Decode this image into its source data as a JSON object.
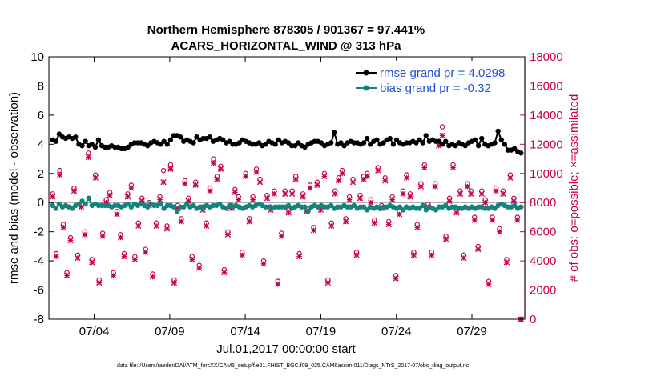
{
  "chart_data": {
    "type": "line",
    "title": "Northern Hemisphere 878305 / 901367 = 97.441%",
    "subtitle": "ACARS_HORIZONTAL_WIND @ 313 hPa",
    "xlabel": "Jul.01,2017 00:00:00 start",
    "ylabel": "rmse and bias (model - observation)",
    "y2label": "# of obs: o=possible; ×=assimilated",
    "footnote": "data file: /Users/raeder/DAI/ATM_forcXX/CAM6_setup/f.e21.FHIST_BGC.f09_025.CAM6assim.011/Diags_NTrS_2017-07/obs_diag_output.nc",
    "xlim": [
      1,
      32.5
    ],
    "ylim": [
      -8,
      10
    ],
    "y2lim": [
      0,
      18000
    ],
    "x_ticks": [
      {
        "value": 4,
        "label": "07/04"
      },
      {
        "value": 9,
        "label": "07/09"
      },
      {
        "value": 14,
        "label": "07/14"
      },
      {
        "value": 19,
        "label": "07/19"
      },
      {
        "value": 24,
        "label": "07/24"
      },
      {
        "value": 29,
        "label": "07/29"
      }
    ],
    "y_ticks": [
      -8,
      -6,
      -4,
      -2,
      0,
      2,
      4,
      6,
      8,
      10
    ],
    "y2_ticks": [
      0,
      2000,
      4000,
      6000,
      8000,
      10000,
      12000,
      14000,
      16000,
      18000
    ],
    "legend": [
      {
        "label": "rmse grand pr = 4.0298",
        "color": "#000000"
      },
      {
        "label": "bias grand pr = -0.32",
        "color": "#12847c"
      }
    ],
    "colors": {
      "rmse": "#000000",
      "bias": "#12847c",
      "obs": "#c8004c",
      "zero_line": "#b0b0b0"
    },
    "series": [
      {
        "name": "rmse",
        "axis": "left",
        "values": [
          4.3,
          4.2,
          4.7,
          4.5,
          4.4,
          4.5,
          4.4,
          4.5,
          4.0,
          3.9,
          4.2,
          3.9,
          4.0,
          3.8,
          4.3,
          3.9,
          3.8,
          3.8,
          3.9,
          3.8,
          3.8,
          3.7,
          3.7,
          3.8,
          4.0,
          4.1,
          4.1,
          4.1,
          4.0,
          3.9,
          4.1,
          4.2,
          4.1,
          4.0,
          4.2,
          4.0,
          4.3,
          4.6,
          4.6,
          4.5,
          4.2,
          4.3,
          4.2,
          4.1,
          4.5,
          4.3,
          4.4,
          4.4,
          4.5,
          4.2,
          4.3,
          4.4,
          4.3,
          4.1,
          4.2,
          4.0,
          4.0,
          4.1,
          4.3,
          4.2,
          4.1,
          4.0,
          4.0,
          4.1,
          3.9,
          4.0,
          4.2,
          4.1,
          4.0,
          4.3,
          4.1,
          4.2,
          4.1,
          3.9,
          3.9,
          4.1,
          3.9,
          3.8,
          4.0,
          4.1,
          4.2,
          4.2,
          4.1,
          3.9,
          4.0,
          4.1,
          4.8,
          4.0,
          4.1,
          3.9,
          4.1,
          4.2,
          4.1,
          4.1,
          4.0,
          4.1,
          4.4,
          4.0,
          4.2,
          4.3,
          4.0,
          4.1,
          4.3,
          4.4,
          4.0,
          4.3,
          4.1,
          4.0,
          4.1,
          4.1,
          4.2,
          4.1,
          4.3,
          4.1,
          4.6,
          4.2,
          4.3,
          4.2,
          4.2,
          4.0,
          4.2,
          3.9,
          4.0,
          3.9,
          4.1,
          4.0,
          3.9,
          4.1,
          4.2,
          4.3,
          3.9,
          4.4,
          4.0,
          3.9,
          4.0,
          4.1,
          4.9,
          4.3,
          4.0,
          3.6,
          3.6,
          3.7,
          3.5,
          3.4
        ]
      },
      {
        "name": "bias",
        "axis": "left",
        "values": [
          -0.2,
          -0.4,
          -0.1,
          -0.3,
          -0.2,
          -0.3,
          -0.4,
          -0.2,
          -0.1,
          0.1,
          -0.1,
          0.3,
          -0.2,
          -0.1,
          -0.2,
          -0.2,
          -0.2,
          -0.2,
          -0.3,
          -0.2,
          -0.2,
          -0.3,
          -0.2,
          -0.1,
          -0.3,
          -0.1,
          -0.2,
          -0.1,
          -0.2,
          -0.3,
          -0.1,
          -0.2,
          -0.2,
          -0.1,
          -0.4,
          -0.2,
          -0.2,
          -0.3,
          -0.6,
          -0.3,
          -0.3,
          -0.1,
          -0.3,
          -0.2,
          -0.4,
          -0.3,
          -0.4,
          -0.2,
          -0.3,
          -0.2,
          -0.2,
          -0.1,
          -0.3,
          -0.4,
          -0.2,
          -0.3,
          -0.2,
          -0.3,
          -0.4,
          -0.3,
          -0.2,
          -0.3,
          -0.2,
          -0.1,
          -0.2,
          -0.3,
          -0.3,
          -0.4,
          -0.3,
          -0.3,
          -0.3,
          -0.3,
          -0.2,
          -0.4,
          -0.3,
          -0.2,
          -0.3,
          -0.3,
          -0.6,
          -0.3,
          -0.2,
          -0.3,
          -0.2,
          -0.3,
          -0.3,
          -0.2,
          -0.4,
          -0.3,
          -0.3,
          -0.2,
          -0.3,
          -0.3,
          -0.2,
          -0.4,
          -0.3,
          -0.3,
          -0.5,
          -0.3,
          -0.4,
          -0.3,
          -0.4,
          -0.3,
          -0.3,
          -0.2,
          -0.3,
          -0.4,
          -0.3,
          -0.5,
          -0.3,
          -0.4,
          -0.3,
          -0.4,
          -0.4,
          -0.2,
          -0.5,
          -0.3,
          -0.4,
          -0.5,
          -0.3,
          -0.3,
          -0.2,
          -0.4,
          -0.3,
          -0.3,
          -0.4,
          -0.4,
          -0.3,
          -0.4,
          -0.3,
          -0.4,
          -0.3,
          -0.3,
          -0.4,
          -0.4,
          -0.3,
          -0.4,
          -0.2,
          -0.1,
          -0.2,
          -0.3,
          -0.3,
          -0.2,
          -0.4,
          -0.3
        ]
      },
      {
        "name": "obs possible",
        "axis": "right",
        "marker": "o",
        "values": [
          8600,
          4500,
          10200,
          6500,
          3200,
          5600,
          9000,
          4400,
          7900,
          6000,
          11400,
          4100,
          9900,
          2700,
          5900,
          8200,
          8700,
          3200,
          7400,
          5800,
          4500,
          8600,
          9200,
          4300,
          6600,
          8300,
          4800,
          8000,
          3100,
          6600,
          8400,
          10200,
          6400,
          10600,
          2700,
          7800,
          6900,
          9500,
          8300,
          4300,
          9400,
          3700,
          7700,
          6600,
          9000,
          11000,
          9800,
          10500,
          3400,
          6000,
          7800,
          8900,
          8400,
          4600,
          10000,
          6900,
          8400,
          10300,
          9600,
          4000,
          8500,
          7700,
          8800,
          2600,
          5900,
          8800,
          7500,
          8800,
          9800,
          4500,
          8600,
          7600,
          9200,
          6300,
          9400,
          7700,
          10000,
          2700,
          6600,
          8800,
          9700,
          10200,
          6900,
          8400,
          9600,
          4600,
          8500,
          9800,
          10000,
          8200,
          6800,
          10400,
          7800,
          9700,
          6700,
          8400,
          3000,
          7400,
          8800,
          9900,
          8600,
          4600,
          6500,
          9300,
          10600,
          7900,
          4600,
          9300,
          12100,
          13200,
          5700,
          8300,
          10600,
          7500,
          8800,
          4400,
          9300,
          8800,
          7000,
          5000,
          8800,
          8200,
          2600,
          7000,
          9000,
          6200,
          8800,
          4100,
          9900,
          8300,
          7000,
          0
        ]
      },
      {
        "name": "obs assimilated",
        "axis": "right",
        "marker": "x",
        "values": [
          8400,
          4300,
          9900,
          6300,
          3000,
          5400,
          8800,
          4200,
          7700,
          5800,
          11100,
          3900,
          9700,
          2500,
          5700,
          8000,
          8500,
          3000,
          7200,
          5600,
          4300,
          8400,
          9000,
          4100,
          6400,
          8100,
          4600,
          7800,
          2900,
          6400,
          8200,
          9400,
          6200,
          10300,
          2500,
          7600,
          6700,
          9300,
          8100,
          4100,
          9200,
          3500,
          7500,
          6400,
          8800,
          10700,
          9600,
          10300,
          3200,
          5800,
          7600,
          8700,
          8200,
          4400,
          9800,
          6700,
          8200,
          10100,
          9400,
          3800,
          8300,
          7500,
          8600,
          2400,
          5700,
          8600,
          7300,
          8600,
          9600,
          4300,
          8400,
          7400,
          9000,
          6100,
          9200,
          7500,
          9800,
          2500,
          6400,
          8600,
          9500,
          10000,
          6700,
          8200,
          9400,
          4400,
          8300,
          9600,
          9800,
          8000,
          6600,
          10200,
          7600,
          9500,
          6500,
          8200,
          2800,
          7200,
          8600,
          9700,
          8400,
          4400,
          6300,
          9100,
          10400,
          7700,
          4400,
          9100,
          11900,
          12600,
          5500,
          8100,
          10400,
          7300,
          8600,
          4200,
          9100,
          8600,
          6800,
          4800,
          8600,
          8000,
          2400,
          6800,
          8800,
          6000,
          8600,
          3900,
          9700,
          8100,
          6800,
          0
        ]
      }
    ]
  }
}
